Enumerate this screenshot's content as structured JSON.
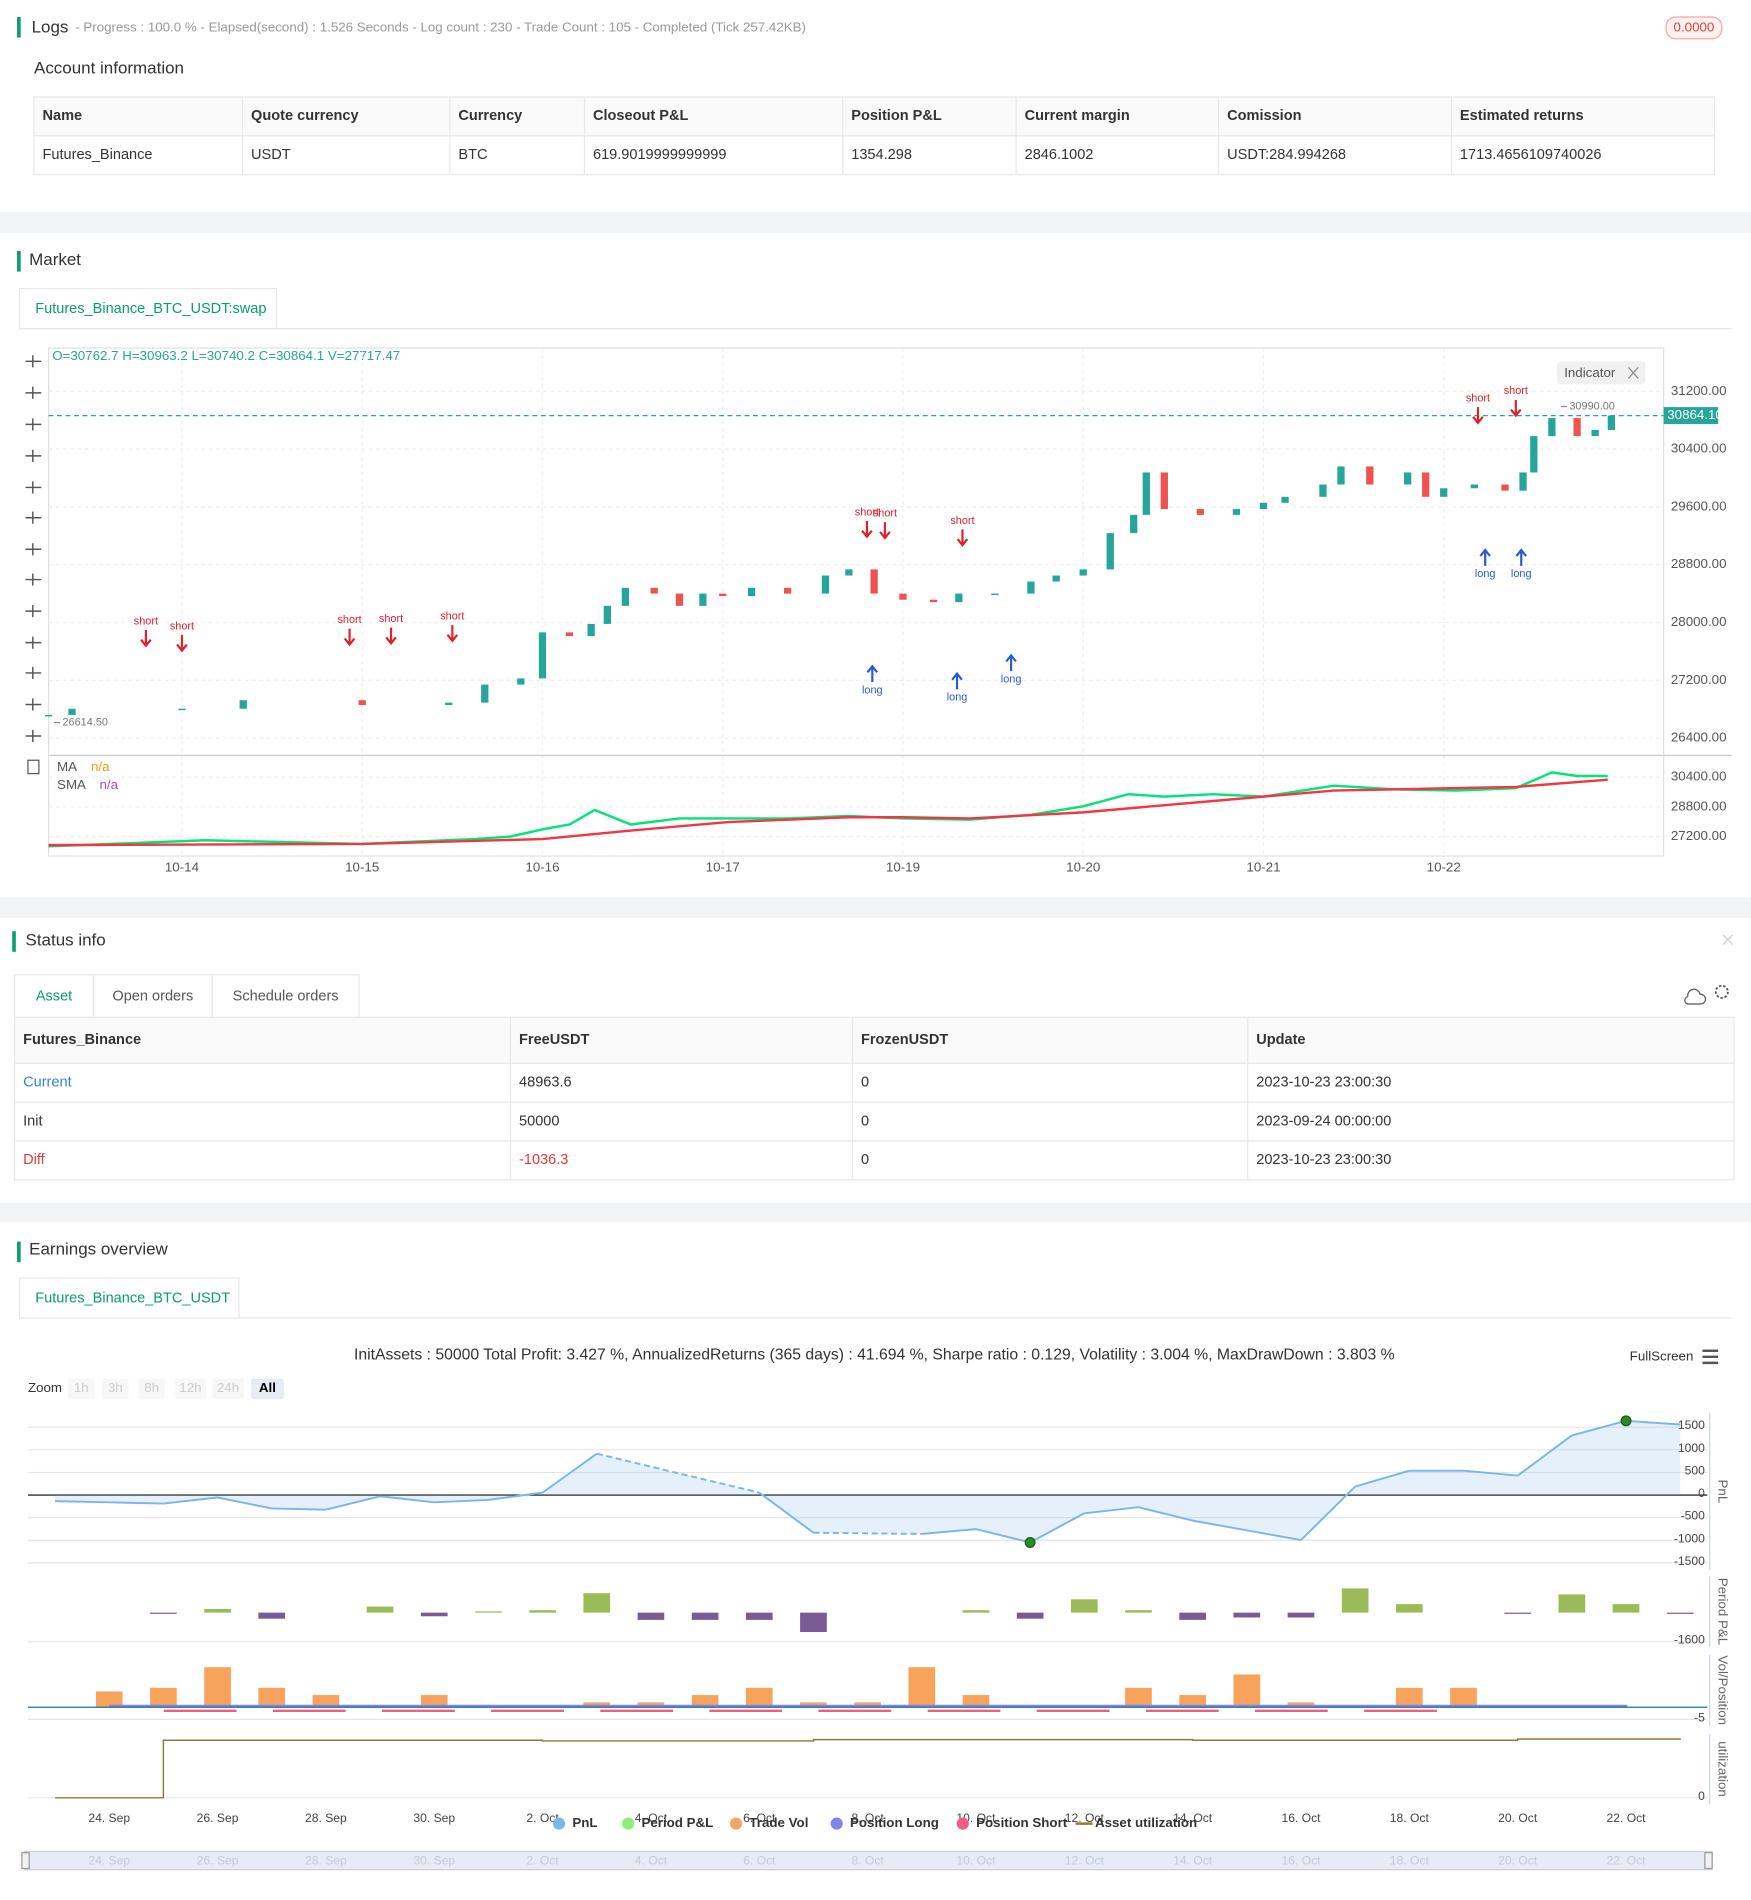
{
  "logs": {
    "title": "Logs",
    "summary": "- Progress : 100.0 % - Elapsed(second) : 1.526 Seconds - Log count : 230 - Trade Count : 105 - Completed (Tick 257.42KB)",
    "badge": "0.0000"
  },
  "account": {
    "title": "Account information",
    "columns": [
      "Name",
      "Quote currency",
      "Currency",
      "Closeout P&L",
      "Position P&L",
      "Current margin",
      "Comission",
      "Estimated returns"
    ],
    "rows": [
      [
        "Futures_Binance",
        "USDT",
        "BTC",
        "619.9019999999999",
        "1354.298",
        "2846.1002",
        "USDT:284.994268",
        "1713.4656109740026"
      ]
    ]
  },
  "market": {
    "title": "Market",
    "tab": "Futures_Binance_BTC_USDT:swap",
    "ohlc": "O=30762.7 H=30963.2 L=30740.2 C=30864.1 V=27717.47",
    "indicator_button": "Indicator",
    "price_chart": {
      "type": "candlestick",
      "x": [
        -0.74,
        -0.61,
        0,
        0.34,
        1,
        1.48,
        1.68,
        1.88,
        2,
        2.15,
        2.27,
        2.36,
        2.46,
        2.62,
        2.76,
        2.89,
        3,
        3.16,
        3.36,
        3.57,
        3.7,
        3.84,
        4,
        4.17,
        4.31,
        4.51,
        4.71,
        4.85,
        5,
        5.15,
        5.28,
        5.35,
        5.45,
        5.65,
        5.85,
        6,
        6.12,
        6.33,
        6.43,
        6.59,
        6.8,
        6.9,
        7,
        7.17,
        7.34,
        7.44,
        7.5,
        7.6,
        7.74,
        7.84,
        7.93
      ],
      "close": [
        26720,
        26806,
        26806,
        26924,
        26857,
        26890,
        27140,
        27226,
        27863,
        27812,
        27980,
        28230,
        28480,
        28400,
        28230,
        28400,
        28366,
        28480,
        28400,
        28650,
        28735,
        28400,
        28315,
        28282,
        28400,
        28400,
        28567,
        28650,
        28735,
        29237,
        29490,
        30077,
        29570,
        29490,
        29570,
        29657,
        29740,
        29910,
        30160,
        29910,
        30077,
        29740,
        29858,
        29910,
        29825,
        30077,
        30580,
        30830,
        30580,
        30665,
        30864
      ],
      "up_color": "#26a69a",
      "down_color": "#ef5350",
      "xlim": [
        -0.74,
        8.22
      ],
      "xticks": [
        {
          "value": 0,
          "label": "10-14"
        },
        {
          "value": 1,
          "label": "10-15"
        },
        {
          "value": 2,
          "label": "10-16"
        },
        {
          "value": 3,
          "label": "10-17"
        },
        {
          "value": 4,
          "label": "10-19"
        },
        {
          "value": 5,
          "label": "10-20"
        },
        {
          "value": 6,
          "label": "10-21"
        },
        {
          "value": 7,
          "label": "10-22"
        }
      ],
      "ylim": [
        26160,
        31800
      ],
      "yticks": [
        {
          "value": 26400,
          "label": "26400.00"
        },
        {
          "value": 27200,
          "label": "27200.00"
        },
        {
          "value": 28000,
          "label": "28000.00"
        },
        {
          "value": 28800,
          "label": "28800.00"
        },
        {
          "value": 29600,
          "label": "29600.00"
        },
        {
          "value": 30400,
          "label": "30400.00"
        },
        {
          "value": 31200,
          "label": "31200.00"
        }
      ],
      "grid": true,
      "last_price": {
        "value": 30864.1,
        "label": "30864.10"
      },
      "high_mark": {
        "x": 7.65,
        "value": 30990,
        "label": "30990.00"
      },
      "low_mark": {
        "x": -0.71,
        "value": 26614.5,
        "label": "26614.50"
      },
      "signals": [
        {
          "label": "short",
          "x": -0.2,
          "price": 28013
        },
        {
          "label": "short",
          "x": 0,
          "price": 27946
        },
        {
          "label": "short",
          "x": 0.93,
          "price": 28030
        },
        {
          "label": "short",
          "x": 1.16,
          "price": 28047
        },
        {
          "label": "short",
          "x": 1.5,
          "price": 28081
        },
        {
          "label": "short",
          "x": 3.8,
          "price": 29523
        },
        {
          "label": "short",
          "x": 3.9,
          "price": 29506
        },
        {
          "label": "short",
          "x": 4.33,
          "price": 29406
        },
        {
          "label": "short",
          "x": 7.19,
          "price": 31099
        },
        {
          "label": "short",
          "x": 7.4,
          "price": 31200
        },
        {
          "label": "long",
          "x": 3.83,
          "price": 27058
        },
        {
          "label": "long",
          "x": 4.3,
          "price": 26957
        },
        {
          "label": "long",
          "x": 4.6,
          "price": 27209
        },
        {
          "label": "long",
          "x": 7.23,
          "price": 28667
        },
        {
          "label": "long",
          "x": 7.43,
          "price": 28667
        }
      ]
    },
    "indicator_chart": {
      "type": "line",
      "xlim": [
        -0.74,
        8.22
      ],
      "ylim": [
        26155,
        31445
      ],
      "yticks": [
        {
          "value": 27200,
          "label": "27200.00"
        },
        {
          "value": 28800,
          "label": "28800.00"
        },
        {
          "value": 30400,
          "label": "30400.00"
        }
      ],
      "series": [
        {
          "name": "MA",
          "value_label": "n/a",
          "color": "#00e676",
          "x": [
            -0.74,
            0.13,
            1,
            1.62,
            1.82,
            2,
            2.15,
            2.29,
            2.49,
            2.76,
            3.03,
            3.36,
            3.7,
            4,
            4.37,
            4.71,
            5,
            5.25,
            5.45,
            5.72,
            6,
            6.39,
            6.73,
            7.07,
            7.4,
            7.6,
            7.74,
            7.91
          ],
          "values": [
            26678,
            27004,
            26808,
            27069,
            27200,
            27592,
            27853,
            28637,
            27853,
            28180,
            28180,
            28180,
            28310,
            28180,
            28114,
            28376,
            28833,
            29486,
            29355,
            29486,
            29355,
            29943,
            29747,
            29682,
            29812,
            30661,
            30465,
            30465
          ]
        },
        {
          "name": "SMA",
          "value_label": "n/a",
          "color": "#f23645",
          "x": [
            -0.74,
            1,
            2,
            2.49,
            3.03,
            3.7,
            4,
            4.37,
            5,
            5.38,
            6,
            6.39,
            7.07,
            7.4,
            7.91
          ],
          "values": [
            26743,
            26808,
            27069,
            27526,
            27984,
            28245,
            28245,
            28180,
            28506,
            28833,
            29355,
            29682,
            29812,
            29878,
            30269
          ]
        }
      ]
    }
  },
  "status": {
    "title": "Status info",
    "tabs": [
      "Asset",
      "Open orders",
      "Schedule orders"
    ],
    "columns": [
      "Futures_Binance",
      "FreeUSDT",
      "FrozenUSDT",
      "Update"
    ],
    "rows": [
      [
        "Current",
        "48963.6",
        "0",
        "2023-10-23 23:00:30"
      ],
      [
        "Init",
        "50000",
        "0",
        "2023-09-24 00:00:00"
      ],
      [
        "Diff",
        "-1036.3",
        "0",
        "2023-10-23 23:00:30"
      ]
    ]
  },
  "earnings": {
    "title": "Earnings overview",
    "tab": "Futures_Binance_BTC_USDT",
    "summary": "InitAssets : 50000 Total Profit: 3.427 %, AnnualizedReturns (365 days) : 41.694 %, Sharpe ratio : 0.129, Volatility : 3.004 %, MaxDrawDown : 3.803 %",
    "fullscreen": "FullScreen",
    "zoom": {
      "label": "Zoom",
      "buttons": [
        "1h",
        "3h",
        "8h",
        "12h",
        "24h",
        "All"
      ],
      "active": 5
    },
    "xlim": [
      -1.5,
      29.5
    ],
    "xticks": [
      {
        "value": 0,
        "label": "24. Sep"
      },
      {
        "value": 2,
        "label": "26. Sep"
      },
      {
        "value": 4,
        "label": "28. Sep"
      },
      {
        "value": 6,
        "label": "30. Sep"
      },
      {
        "value": 8,
        "label": "2. Oct"
      },
      {
        "value": 10,
        "label": "4. Oct"
      },
      {
        "value": 12,
        "label": "6. Oct"
      },
      {
        "value": 14,
        "label": "8. Oct"
      },
      {
        "value": 16,
        "label": "10. Oct"
      },
      {
        "value": 18,
        "label": "12. Oct"
      },
      {
        "value": 20,
        "label": "14. Oct"
      },
      {
        "value": 22,
        "label": "16. Oct"
      },
      {
        "value": 24,
        "label": "18. Oct"
      },
      {
        "value": 26,
        "label": "20. Oct"
      },
      {
        "value": 28,
        "label": "22. Oct"
      }
    ],
    "legend": [
      {
        "name": "PnL",
        "color": "#7cb5ec"
      },
      {
        "name": "Period P&L",
        "color": "#90ed7d"
      },
      {
        "name": "Trade Vol",
        "color": "#f7a35c"
      },
      {
        "name": "Position Long",
        "color": "#8085e9"
      },
      {
        "name": "Position Short",
        "color": "#f15c80"
      },
      {
        "name": "Asset utilization",
        "color": "#8d7b3a"
      }
    ],
    "pnl": {
      "type": "area",
      "axis_label": "PnL",
      "color": "#7cb5ec",
      "ylim": [
        -1661,
        1823
      ],
      "yticks": [
        1500,
        1000,
        500,
        0,
        -500,
        -1000,
        -1500
      ],
      "x": [
        -1,
        0,
        1,
        2,
        3,
        4,
        5,
        6,
        7,
        8,
        9,
        12,
        13,
        15,
        16,
        17,
        18,
        19,
        20,
        21,
        22,
        23,
        24,
        25,
        26,
        27,
        28,
        29
      ],
      "values": [
        -134,
        -161,
        -188,
        -54,
        -296,
        -323,
        -27,
        -161,
        -108,
        54,
        914,
        54,
        -833,
        -860,
        -753,
        -1048,
        -403,
        -269,
        -565,
        -780,
        -995,
        188,
        538,
        538,
        430,
        1317,
        1640,
        1559
      ]
    },
    "period": {
      "type": "bar",
      "axis_label": "Period P&L",
      "up_color": "#9bbb59",
      "down_color": "#7b5b94",
      "ylim": [
        -1867,
        2000
      ],
      "yticks": [
        -1600
      ],
      "x": [
        1,
        2,
        3,
        5,
        6,
        7,
        8,
        9,
        10,
        11,
        12,
        13,
        16,
        17,
        18,
        19,
        20,
        21,
        22,
        23,
        24,
        26,
        27,
        28,
        29
      ],
      "values": [
        -50,
        200,
        -333,
        333,
        -200,
        67,
        133,
        1067,
        -400,
        -400,
        -400,
        -1067,
        133,
        -333,
        733,
        133,
        -400,
        -267,
        -267,
        1333,
        467,
        -67,
        1000,
        467,
        -67
      ]
    },
    "vol": {
      "type": "bar",
      "axis_label": "Vol/Position",
      "color": "#f7a35c",
      "ylim": [
        -7.5,
        21.5
      ],
      "yticks": [
        -5
      ],
      "x": [
        0,
        1,
        2,
        3,
        4,
        6,
        9,
        10,
        11,
        12,
        13,
        14,
        15,
        16,
        19,
        20,
        21,
        22,
        24,
        25
      ],
      "values": [
        6.5,
        8,
        16.5,
        8,
        5,
        5,
        2,
        2,
        5,
        8,
        2,
        2,
        16.5,
        5,
        8,
        5,
        13.5,
        2,
        8,
        8
      ]
    },
    "util": {
      "type": "step",
      "axis_label": "utilization",
      "color": "#8d7b3a",
      "ylim": [
        -0.5,
        5
      ],
      "yticks": [
        0
      ],
      "x": [
        -1,
        1,
        1,
        8,
        13,
        20,
        26,
        29
      ],
      "values": [
        0,
        0,
        4.5,
        4.45,
        4.55,
        4.5,
        4.6,
        4.55
      ]
    }
  }
}
